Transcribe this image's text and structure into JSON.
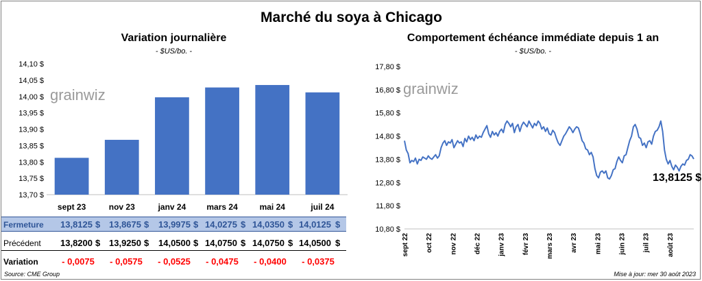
{
  "title": "Marché du soya à Chicago",
  "left": {
    "subtitle": "Variation journalière",
    "unit": "- $US/bo. -",
    "watermark": "grainwiz"
  },
  "right": {
    "subtitle": "Comportement échéance immédiate depuis 1 an",
    "unit": "- $US/bo. -",
    "watermark": "grainwiz",
    "last_label": "13,8125 $"
  },
  "table": {
    "labels": {
      "fermeture": "Fermeture",
      "precedent": "Précédent",
      "variation": "Variation"
    },
    "fermeture": [
      "13,8125",
      "13,8675",
      "13,9975",
      "14,0275",
      "14,0350",
      "14,0125"
    ],
    "precedent": [
      "13,8200",
      "13,9250",
      "14,0500",
      "14,0750",
      "14,0750",
      "14,0500"
    ],
    "variation": [
      "- 0,0075",
      "- 0,0575",
      "- 0,0525",
      "- 0,0475",
      "- 0,0400",
      "- 0,0375"
    ],
    "currency": "$"
  },
  "footer": {
    "source": "Source: CME Group",
    "updated": "Mise à jour: mer 30 août 2023"
  },
  "colors": {
    "bar": "#4472c4",
    "line": "#4472c4",
    "negative": "#ff0000",
    "highlight": "#b4c7e7"
  },
  "chart_data": [
    {
      "type": "bar",
      "title": "Variation journalière",
      "categories": [
        "sept 23",
        "nov 23",
        "janv 24",
        "mars 24",
        "mai 24",
        "juil 24"
      ],
      "values": [
        13.8125,
        13.8675,
        13.9975,
        14.0275,
        14.035,
        14.0125
      ],
      "ylim": [
        13.7,
        14.1
      ],
      "yticks": [
        14.1,
        14.05,
        14.0,
        13.95,
        13.9,
        13.85,
        13.8,
        13.75,
        13.7
      ],
      "ytick_labels": [
        "14,10 $",
        "14,05 $",
        "14,00 $",
        "13,95 $",
        "13,90 $",
        "13,85 $",
        "13,80 $",
        "13,75 $",
        "13,70 $"
      ]
    },
    {
      "type": "line",
      "title": "Comportement échéance immédiate depuis 1 an",
      "ylim": [
        10.8,
        17.8
      ],
      "yticks": [
        17.8,
        16.8,
        15.8,
        14.8,
        13.8,
        12.8,
        11.8,
        10.8
      ],
      "ytick_labels": [
        "17,80 $",
        "16,80 $",
        "15,80 $",
        "14,80 $",
        "13,80 $",
        "12,80 $",
        "11,80 $",
        "10,80 $"
      ],
      "xtick_labels": [
        "sept 22",
        "oct 22",
        "nov 22",
        "déc 22",
        "janv 23",
        "févr 23",
        "mars 23",
        "avr 23",
        "mai 23",
        "juin 23",
        "juil 23",
        "août 23"
      ],
      "values": [
        14.6,
        14.2,
        14.05,
        13.65,
        13.75,
        13.7,
        13.85,
        13.6,
        13.8,
        13.75,
        13.9,
        13.85,
        13.8,
        13.95,
        13.85,
        13.8,
        13.9,
        14.0,
        13.85,
        13.95,
        14.3,
        14.5,
        14.6,
        14.4,
        14.55,
        14.5,
        14.65,
        14.3,
        14.45,
        14.6,
        14.5,
        14.55,
        14.35,
        14.7,
        14.55,
        14.8,
        14.65,
        14.75,
        14.6,
        14.85,
        14.7,
        14.8,
        14.75,
        14.95,
        15.1,
        15.25,
        14.9,
        14.75,
        15.0,
        14.85,
        14.95,
        14.8,
        15.0,
        15.1,
        14.95,
        15.3,
        15.45,
        15.35,
        15.2,
        15.35,
        14.95,
        15.2,
        15.3,
        15.0,
        15.25,
        15.4,
        15.3,
        15.2,
        15.45,
        15.3,
        15.15,
        15.35,
        15.25,
        15.45,
        15.35,
        15.1,
        15.2,
        15.0,
        15.15,
        14.9,
        14.85,
        15.05,
        14.95,
        14.7,
        14.5,
        14.4,
        14.6,
        14.8,
        14.9,
        15.05,
        15.2,
        15.1,
        14.95,
        15.1,
        15.2,
        15.15,
        14.9,
        14.6,
        14.5,
        14.25,
        14.2,
        14.0,
        14.1,
        13.9,
        13.4,
        13.1,
        13.0,
        13.25,
        13.3,
        13.2,
        13.3,
        13.0,
        12.95,
        13.1,
        13.35,
        13.4,
        13.7,
        13.9,
        13.75,
        13.65,
        13.95,
        14.0,
        14.3,
        14.6,
        14.8,
        15.2,
        15.3,
        15.1,
        14.75,
        14.7,
        14.4,
        14.5,
        14.3,
        14.55,
        14.6,
        14.45,
        14.8,
        15.0,
        15.05,
        15.2,
        15.45,
        15.0,
        14.2,
        13.8,
        13.6,
        13.75,
        13.5,
        13.35,
        13.55,
        13.45,
        13.3,
        13.5,
        13.6,
        13.55,
        13.75,
        13.8,
        14.0,
        13.95,
        13.8125
      ]
    }
  ]
}
